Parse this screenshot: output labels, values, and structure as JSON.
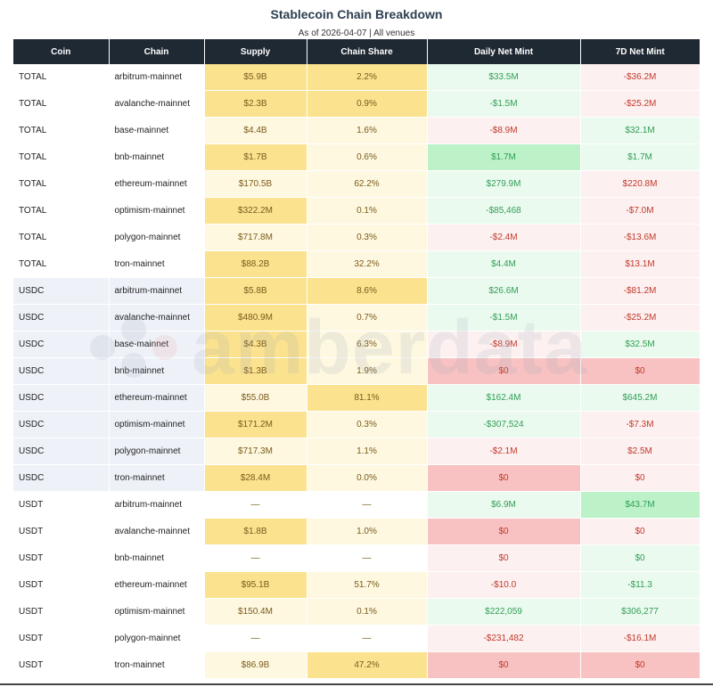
{
  "header": {
    "title": "Stablecoin Chain Breakdown",
    "subtitle": "As of 2026-04-07 | All venues"
  },
  "watermark": {
    "text": "amberdata"
  },
  "table": {
    "columns": [
      "Coin",
      "Chain",
      "Supply",
      "Chain Share",
      "Daily Net Mint",
      "7D Net Mint"
    ],
    "rows": [
      {
        "coin": "TOTAL",
        "chain": "arbitrum-mainnet",
        "supply": "$5.9B",
        "share": "2.2%",
        "daily": "$33.5M",
        "seven": "-$36.2M",
        "supply_tone": "y-strong",
        "share_tone": "y-strong",
        "daily_tone": "g-light",
        "seven_tone": "r-light",
        "group": "total"
      },
      {
        "coin": "TOTAL",
        "chain": "avalanche-mainnet",
        "supply": "$2.3B",
        "share": "0.9%",
        "daily": "-$1.5M",
        "seven": "-$25.2M",
        "supply_tone": "y-strong",
        "share_tone": "y-strong",
        "daily_tone": "g-light",
        "seven_tone": "r-light",
        "group": "total"
      },
      {
        "coin": "TOTAL",
        "chain": "base-mainnet",
        "supply": "$4.4B",
        "share": "1.6%",
        "daily": "-$8.9M",
        "seven": "$32.1M",
        "supply_tone": "y-light",
        "share_tone": "y-light",
        "daily_tone": "r-light",
        "seven_tone": "g-light",
        "group": "total"
      },
      {
        "coin": "TOTAL",
        "chain": "bnb-mainnet",
        "supply": "$1.7B",
        "share": "0.6%",
        "daily": "$1.7M",
        "seven": "$1.7M",
        "supply_tone": "y-strong",
        "share_tone": "y-light",
        "daily_tone": "g-strong",
        "seven_tone": "g-light",
        "group": "total"
      },
      {
        "coin": "TOTAL",
        "chain": "ethereum-mainnet",
        "supply": "$170.5B",
        "share": "62.2%",
        "daily": "$279.9M",
        "seven": "$220.8M",
        "supply_tone": "y-light",
        "share_tone": "y-light",
        "daily_tone": "g-light",
        "seven_tone": "r-light",
        "group": "total"
      },
      {
        "coin": "TOTAL",
        "chain": "optimism-mainnet",
        "supply": "$322.2M",
        "share": "0.1%",
        "daily": "-$85,468",
        "seven": "-$7.0M",
        "supply_tone": "y-strong",
        "share_tone": "y-light",
        "daily_tone": "g-light",
        "seven_tone": "r-light",
        "group": "total"
      },
      {
        "coin": "TOTAL",
        "chain": "polygon-mainnet",
        "supply": "$717.8M",
        "share": "0.3%",
        "daily": "-$2.4M",
        "seven": "-$13.6M",
        "supply_tone": "y-light",
        "share_tone": "y-light",
        "daily_tone": "r-light",
        "seven_tone": "r-light",
        "group": "total"
      },
      {
        "coin": "TOTAL",
        "chain": "tron-mainnet",
        "supply": "$88.2B",
        "share": "32.2%",
        "daily": "$4.4M",
        "seven": "$13.1M",
        "supply_tone": "y-strong",
        "share_tone": "y-light",
        "daily_tone": "g-light",
        "seven_tone": "r-light",
        "group": "total"
      },
      {
        "coin": "USDC",
        "chain": "arbitrum-mainnet",
        "supply": "$5.8B",
        "share": "8.6%",
        "daily": "$26.6M",
        "seven": "-$81.2M",
        "supply_tone": "y-strong",
        "share_tone": "y-strong",
        "daily_tone": "g-light",
        "seven_tone": "r-light",
        "group": "usdc"
      },
      {
        "coin": "USDC",
        "chain": "avalanche-mainnet",
        "supply": "$480.9M",
        "share": "0.7%",
        "daily": "-$1.5M",
        "seven": "-$25.2M",
        "supply_tone": "y-strong",
        "share_tone": "y-light",
        "daily_tone": "g-light",
        "seven_tone": "r-light",
        "group": "usdc"
      },
      {
        "coin": "USDC",
        "chain": "base-mainnet",
        "supply": "$4.3B",
        "share": "6.3%",
        "daily": "-$8.9M",
        "seven": "$32.5M",
        "supply_tone": "y-strong",
        "share_tone": "y-light",
        "daily_tone": "r-light",
        "seven_tone": "g-light",
        "group": "usdc"
      },
      {
        "coin": "USDC",
        "chain": "bnb-mainnet",
        "supply": "$1.3B",
        "share": "1.9%",
        "daily": "$0",
        "seven": "$0",
        "supply_tone": "y-strong",
        "share_tone": "y-light",
        "daily_tone": "r-strong",
        "seven_tone": "r-strong",
        "group": "usdc"
      },
      {
        "coin": "USDC",
        "chain": "ethereum-mainnet",
        "supply": "$55.0B",
        "share": "81.1%",
        "daily": "$162.4M",
        "seven": "$645.2M",
        "supply_tone": "y-light",
        "share_tone": "y-strong",
        "daily_tone": "g-light",
        "seven_tone": "g-light",
        "group": "usdc"
      },
      {
        "coin": "USDC",
        "chain": "optimism-mainnet",
        "supply": "$171.2M",
        "share": "0.3%",
        "daily": "-$307,524",
        "seven": "-$7.3M",
        "supply_tone": "y-strong",
        "share_tone": "y-light",
        "daily_tone": "g-light",
        "seven_tone": "r-light",
        "group": "usdc"
      },
      {
        "coin": "USDC",
        "chain": "polygon-mainnet",
        "supply": "$717.3M",
        "share": "1.1%",
        "daily": "-$2.1M",
        "seven": "$2.5M",
        "supply_tone": "y-light",
        "share_tone": "y-light",
        "daily_tone": "r-light",
        "seven_tone": "r-light",
        "group": "usdc"
      },
      {
        "coin": "USDC",
        "chain": "tron-mainnet",
        "supply": "$28.4M",
        "share": "0.0%",
        "daily": "$0",
        "seven": "$0",
        "supply_tone": "y-strong",
        "share_tone": "y-light",
        "daily_tone": "r-strong",
        "seven_tone": "r-light",
        "group": "usdc"
      },
      {
        "coin": "USDT",
        "chain": "arbitrum-mainnet",
        "supply": "—",
        "share": "—",
        "daily": "$6.9M",
        "seven": "$43.7M",
        "supply_tone": "y-none",
        "share_tone": "y-none",
        "daily_tone": "g-light",
        "seven_tone": "g-strong",
        "group": "usdt"
      },
      {
        "coin": "USDT",
        "chain": "avalanche-mainnet",
        "supply": "$1.8B",
        "share": "1.0%",
        "daily": "$0",
        "seven": "$0",
        "supply_tone": "y-strong",
        "share_tone": "y-light",
        "daily_tone": "r-strong",
        "seven_tone": "r-light",
        "group": "usdt"
      },
      {
        "coin": "USDT",
        "chain": "bnb-mainnet",
        "supply": "—",
        "share": "—",
        "daily": "$0",
        "seven": "$0",
        "supply_tone": "y-none",
        "share_tone": "y-none",
        "daily_tone": "r-light",
        "seven_tone": "g-light",
        "group": "usdt"
      },
      {
        "coin": "USDT",
        "chain": "ethereum-mainnet",
        "supply": "$95.1B",
        "share": "51.7%",
        "daily": "-$10.0",
        "seven": "-$11.3",
        "supply_tone": "y-strong",
        "share_tone": "y-light",
        "daily_tone": "r-light",
        "seven_tone": "g-light",
        "group": "usdt"
      },
      {
        "coin": "USDT",
        "chain": "optimism-mainnet",
        "supply": "$150.4M",
        "share": "0.1%",
        "daily": "$222,059",
        "seven": "$306,277",
        "supply_tone": "y-light",
        "share_tone": "y-light",
        "daily_tone": "g-light",
        "seven_tone": "g-light",
        "group": "usdt"
      },
      {
        "coin": "USDT",
        "chain": "polygon-mainnet",
        "supply": "—",
        "share": "—",
        "daily": "-$231,482",
        "seven": "-$16.1M",
        "supply_tone": "y-none",
        "share_tone": "y-none",
        "daily_tone": "r-light",
        "seven_tone": "r-light",
        "group": "usdt"
      },
      {
        "coin": "USDT",
        "chain": "tron-mainnet",
        "supply": "$86.9B",
        "share": "47.2%",
        "daily": "$0",
        "seven": "$0",
        "supply_tone": "y-light",
        "share_tone": "y-strong",
        "daily_tone": "r-strong",
        "seven_tone": "r-strong",
        "group": "usdt"
      }
    ]
  }
}
